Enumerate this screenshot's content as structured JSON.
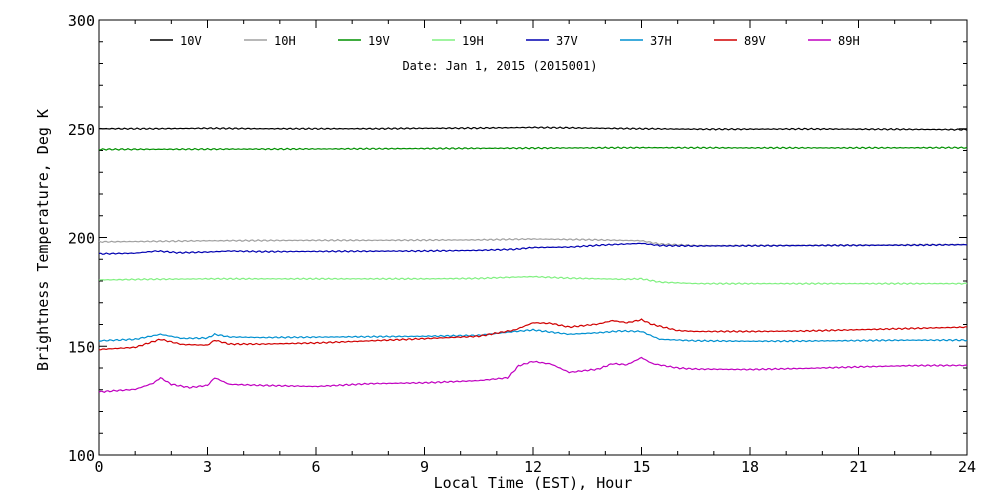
{
  "chart_data": {
    "type": "line",
    "title": "",
    "subtitle": "Date: Jan  1, 2015 (2015001)",
    "xlabel": "Local Time (EST), Hour",
    "ylabel": "Brightness Temperature, Deg K",
    "xlim": [
      0,
      24
    ],
    "ylim": [
      100,
      300
    ],
    "xticks": [
      0,
      3,
      6,
      9,
      12,
      15,
      18,
      21,
      24
    ],
    "yticks": [
      100,
      150,
      200,
      250,
      300
    ],
    "xtick_labels": [
      "0",
      "3",
      "6",
      "9",
      "12",
      "15",
      "18",
      "21",
      "24"
    ],
    "ytick_labels": [
      "100",
      "150",
      "200",
      "250",
      "300"
    ],
    "grid": false,
    "legend_position": "top",
    "series": [
      {
        "name": "10V",
        "color": "#000000",
        "points": [
          [
            0,
            250
          ],
          [
            1.5,
            250
          ],
          [
            3,
            250.2
          ],
          [
            4.5,
            250
          ],
          [
            6,
            250
          ],
          [
            7.5,
            250
          ],
          [
            9,
            250.2
          ],
          [
            10.5,
            250.3
          ],
          [
            12,
            250.6
          ],
          [
            13.5,
            250.3
          ],
          [
            15,
            250
          ],
          [
            16.5,
            249.8
          ],
          [
            18,
            249.8
          ],
          [
            19.5,
            249.9
          ],
          [
            21,
            249.8
          ],
          [
            22.5,
            249.7
          ],
          [
            24,
            249.6
          ]
        ]
      },
      {
        "name": "10H",
        "color": "#a0a0a0",
        "points": [
          [
            0,
            198
          ],
          [
            1.5,
            198.2
          ],
          [
            3,
            198.5
          ],
          [
            4.5,
            198.6
          ],
          [
            6,
            198.7
          ],
          [
            7.5,
            198.7
          ],
          [
            9,
            198.8
          ],
          [
            10.5,
            198.9
          ],
          [
            12,
            199.3
          ],
          [
            13.5,
            199
          ],
          [
            15,
            198.5
          ],
          [
            15.5,
            197
          ],
          [
            16.5,
            196.3
          ],
          [
            18,
            196.3
          ],
          [
            19.5,
            196.4
          ],
          [
            21,
            196.5
          ],
          [
            22.5,
            196.6
          ],
          [
            24,
            196.8
          ]
        ]
      },
      {
        "name": "19V",
        "color": "#009000",
        "points": [
          [
            0,
            240.5
          ],
          [
            3,
            240.6
          ],
          [
            6,
            240.7
          ],
          [
            9,
            240.9
          ],
          [
            12,
            241.1
          ],
          [
            15,
            241.3
          ],
          [
            18,
            241.2
          ],
          [
            21,
            241.2
          ],
          [
            24,
            241.3
          ]
        ]
      },
      {
        "name": "19H",
        "color": "#80f080",
        "points": [
          [
            0,
            180.5
          ],
          [
            1.5,
            180.8
          ],
          [
            3,
            181
          ],
          [
            4.5,
            181
          ],
          [
            6,
            181
          ],
          [
            7.5,
            181
          ],
          [
            9,
            181
          ],
          [
            10.5,
            181.2
          ],
          [
            11.5,
            181.8
          ],
          [
            12,
            182
          ],
          [
            13,
            181.3
          ],
          [
            14.5,
            180.8
          ],
          [
            15,
            181
          ],
          [
            15.5,
            179.5
          ],
          [
            16.5,
            178.8
          ],
          [
            18,
            178.8
          ],
          [
            21,
            178.8
          ],
          [
            24,
            178.8
          ]
        ]
      },
      {
        "name": "37V",
        "color": "#0000b0",
        "points": [
          [
            0,
            192.5
          ],
          [
            1.0,
            192.8
          ],
          [
            1.6,
            193.8
          ],
          [
            2.2,
            193
          ],
          [
            3,
            193.3
          ],
          [
            3.6,
            193.8
          ],
          [
            4.5,
            193.5
          ],
          [
            6,
            193.6
          ],
          [
            7.5,
            193.7
          ],
          [
            9,
            193.8
          ],
          [
            10.5,
            194.1
          ],
          [
            11.5,
            194.6
          ],
          [
            12,
            195.4
          ],
          [
            13,
            195.6
          ],
          [
            14,
            196.6
          ],
          [
            15,
            197.3
          ],
          [
            15.5,
            196.3
          ],
          [
            16.5,
            196.1
          ],
          [
            18,
            196.2
          ],
          [
            19.5,
            196.3
          ],
          [
            21,
            196.4
          ],
          [
            22.5,
            196.5
          ],
          [
            24,
            196.7
          ]
        ]
      },
      {
        "name": "37H",
        "color": "#0090d0",
        "points": [
          [
            0,
            152.5
          ],
          [
            1.0,
            153.2
          ],
          [
            1.7,
            155.5
          ],
          [
            2.3,
            153.6
          ],
          [
            3,
            153.8
          ],
          [
            3.2,
            155.5
          ],
          [
            3.6,
            154.3
          ],
          [
            4.5,
            154
          ],
          [
            6,
            154.2
          ],
          [
            7.5,
            154.4
          ],
          [
            9,
            154.6
          ],
          [
            10.5,
            155
          ],
          [
            11.5,
            156.8
          ],
          [
            12,
            157.5
          ],
          [
            12.5,
            156.5
          ],
          [
            13,
            155.5
          ],
          [
            13.8,
            156.2
          ],
          [
            14.4,
            157
          ],
          [
            15,
            156.8
          ],
          [
            15.5,
            153.2
          ],
          [
            16.5,
            152.5
          ],
          [
            18,
            152.3
          ],
          [
            19.5,
            152.4
          ],
          [
            21,
            152.6
          ],
          [
            22.5,
            152.8
          ],
          [
            24,
            152.8
          ]
        ]
      },
      {
        "name": "89V",
        "color": "#d00000",
        "points": [
          [
            0,
            148.5
          ],
          [
            1.0,
            149.5
          ],
          [
            1.7,
            153.2
          ],
          [
            2.3,
            150.8
          ],
          [
            3,
            150.5
          ],
          [
            3.2,
            152.8
          ],
          [
            3.6,
            151
          ],
          [
            4.5,
            151
          ],
          [
            6,
            151.5
          ],
          [
            7.5,
            152.5
          ],
          [
            9,
            153.5
          ],
          [
            10.5,
            154.6
          ],
          [
            11.5,
            157.5
          ],
          [
            12,
            160.8
          ],
          [
            12.5,
            160.5
          ],
          [
            13,
            158.8
          ],
          [
            13.8,
            160.2
          ],
          [
            14.2,
            161.8
          ],
          [
            14.6,
            160.8
          ],
          [
            15,
            162.2
          ],
          [
            15.3,
            160
          ],
          [
            16,
            157.2
          ],
          [
            16.5,
            156.8
          ],
          [
            18,
            156.8
          ],
          [
            19.5,
            157
          ],
          [
            21,
            157.6
          ],
          [
            22.5,
            158.2
          ],
          [
            24,
            158.8
          ]
        ]
      },
      {
        "name": "89H",
        "color": "#c000c0",
        "points": [
          [
            0,
            129
          ],
          [
            1.0,
            130.2
          ],
          [
            1.5,
            133
          ],
          [
            1.7,
            135.5
          ],
          [
            2.0,
            132.5
          ],
          [
            2.5,
            131
          ],
          [
            3,
            132
          ],
          [
            3.2,
            135.5
          ],
          [
            3.6,
            132.5
          ],
          [
            4.5,
            132
          ],
          [
            6,
            131.5
          ],
          [
            7.5,
            132.8
          ],
          [
            9,
            133.2
          ],
          [
            10.5,
            134.2
          ],
          [
            11.3,
            135.5
          ],
          [
            11.6,
            141
          ],
          [
            12,
            143
          ],
          [
            12.5,
            141.8
          ],
          [
            13,
            138
          ],
          [
            13.8,
            139.5
          ],
          [
            14.2,
            142
          ],
          [
            14.6,
            141.5
          ],
          [
            15,
            144.8
          ],
          [
            15.3,
            142
          ],
          [
            16,
            140
          ],
          [
            16.5,
            139.5
          ],
          [
            18,
            139.3
          ],
          [
            19.5,
            139.8
          ],
          [
            21,
            140.5
          ],
          [
            22.5,
            141.1
          ],
          [
            24,
            141.2
          ]
        ]
      }
    ]
  }
}
